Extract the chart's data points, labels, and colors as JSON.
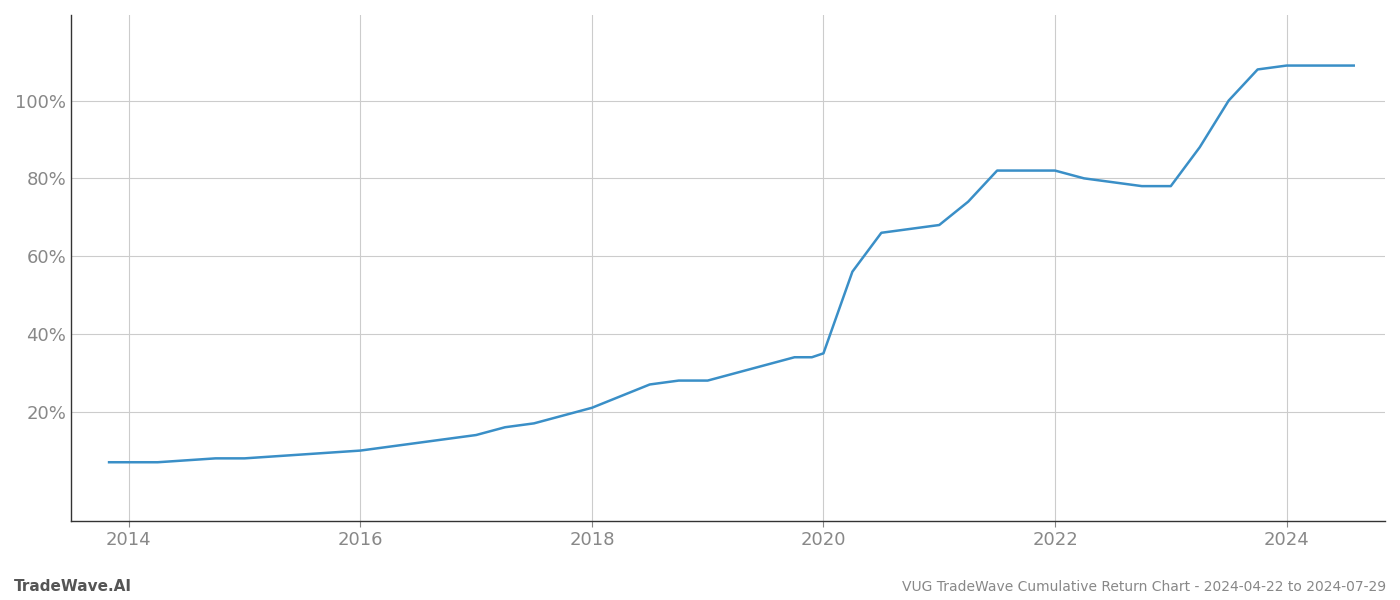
{
  "title": "VUG TradeWave Cumulative Return Chart - 2024-04-22 to 2024-07-29",
  "watermark": "TradeWave.AI",
  "line_color": "#3a8fc7",
  "line_width": 1.8,
  "background_color": "#ffffff",
  "grid_color": "#cccccc",
  "x_years": [
    2013.83,
    2014.0,
    2014.25,
    2014.5,
    2014.75,
    2015.0,
    2015.25,
    2015.5,
    2015.75,
    2016.0,
    2016.25,
    2016.5,
    2016.75,
    2017.0,
    2017.25,
    2017.5,
    2017.75,
    2018.0,
    2018.25,
    2018.5,
    2018.75,
    2019.0,
    2019.25,
    2019.5,
    2019.75,
    2019.9,
    2020.0,
    2020.25,
    2020.5,
    2020.75,
    2021.0,
    2021.25,
    2021.5,
    2021.75,
    2022.0,
    2022.25,
    2022.5,
    2022.75,
    2023.0,
    2023.25,
    2023.5,
    2023.75,
    2024.0,
    2024.25,
    2024.58
  ],
  "y_values": [
    7,
    7,
    7,
    7.5,
    8,
    8,
    8.5,
    9,
    9.5,
    10,
    11,
    12,
    13,
    14,
    16,
    17,
    19,
    21,
    24,
    27,
    28,
    28,
    30,
    32,
    34,
    34,
    35,
    56,
    66,
    67,
    68,
    74,
    82,
    82,
    82,
    80,
    79,
    78,
    78,
    88,
    100,
    108,
    109,
    109,
    109
  ],
  "ytick_values": [
    20,
    40,
    60,
    80,
    100
  ],
  "ytick_labels": [
    "20%",
    "40%",
    "60%",
    "80%",
    "100%"
  ],
  "xtick_values": [
    2014,
    2016,
    2018,
    2020,
    2022,
    2024
  ],
  "xlim": [
    2013.5,
    2024.85
  ],
  "ylim": [
    -8,
    122
  ]
}
